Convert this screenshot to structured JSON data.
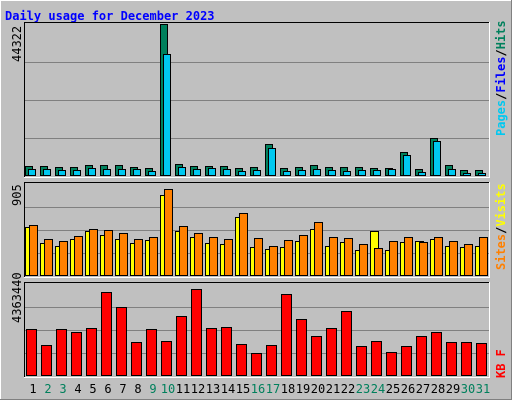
{
  "chart_data": [
    {
      "type": "bar",
      "title": "Daily usage for December 2023",
      "categories": [
        "1",
        "2",
        "3",
        "4",
        "5",
        "6",
        "7",
        "8",
        "9",
        "10",
        "11",
        "12",
        "13",
        "14",
        "15",
        "16",
        "17",
        "18",
        "19",
        "20",
        "21",
        "22",
        "23",
        "24",
        "25",
        "26",
        "27",
        "28",
        "29",
        "30",
        "31"
      ],
      "weekend_days": [
        "2",
        "3",
        "9",
        "10",
        "16",
        "17",
        "23",
        "24",
        "30",
        "31"
      ],
      "ymax_label": "44322",
      "ylim": [
        0,
        44322
      ],
      "legend": [
        "Pages",
        "/",
        "Files",
        "/",
        "Hits"
      ],
      "series": [
        {
          "name": "Hits",
          "color": "#00805c",
          "values": [
            3000,
            2800,
            2700,
            2600,
            3300,
            3100,
            3200,
            2700,
            2200,
            44322,
            3400,
            2800,
            3000,
            2800,
            2400,
            2500,
            9200,
            2300,
            2700,
            3200,
            2700,
            2500,
            2500,
            2200,
            2400,
            7000,
            1900,
            11200,
            3100,
            1700,
            1700
          ]
        },
        {
          "name": "Files",
          "color": "#00c8f0",
          "values": [
            2000,
            1900,
            1800,
            1800,
            2400,
            2000,
            2000,
            1900,
            1600,
            35500,
            2500,
            2000,
            2400,
            2000,
            1600,
            1700,
            8200,
            1600,
            1800,
            2100,
            1800,
            1600,
            1700,
            1700,
            1900,
            6100,
            1200,
            10100,
            2100,
            1000,
            1000
          ]
        },
        {
          "name": "Pages",
          "color": "#00c8f0",
          "values": [
            0,
            0,
            0,
            0,
            0,
            0,
            0,
            0,
            0,
            0,
            0,
            0,
            0,
            0,
            0,
            0,
            0,
            0,
            0,
            0,
            0,
            0,
            0,
            0,
            0,
            0,
            0,
            0,
            0,
            0,
            0
          ]
        }
      ]
    },
    {
      "type": "bar",
      "ymax_label": "905",
      "ylim": [
        0,
        905
      ],
      "legend": [
        "Sites",
        "/",
        "Visits"
      ],
      "series": [
        {
          "name": "Visits",
          "color": "#ffff00",
          "values": [
            480,
            320,
            300,
            360,
            440,
            400,
            360,
            320,
            350,
            800,
            440,
            380,
            320,
            310,
            580,
            290,
            270,
            290,
            340,
            460,
            300,
            330,
            260,
            440,
            260,
            330,
            340,
            360,
            300,
            290,
            300
          ]
        },
        {
          "name": "Sites",
          "color": "#ff8000",
          "values": [
            500,
            360,
            340,
            390,
            460,
            450,
            420,
            360,
            380,
            860,
            490,
            420,
            380,
            360,
            620,
            370,
            300,
            350,
            400,
            530,
            380,
            370,
            310,
            280,
            340,
            380,
            330,
            380,
            340,
            310,
            380
          ]
        }
      ]
    },
    {
      "type": "bar",
      "ymax_label": "4363440",
      "ylim": [
        0,
        4363440
      ],
      "legend": [
        "KB",
        "F"
      ],
      "series": [
        {
          "name": "KB F",
          "color": "#ff0000",
          "values": [
            2250000,
            1470000,
            2250000,
            2080000,
            2270000,
            3980000,
            3280000,
            1620000,
            2230000,
            1640000,
            2830000,
            4140000,
            2280000,
            2330000,
            1520000,
            1080000,
            1460000,
            3900000,
            2680000,
            1920000,
            2280000,
            3080000,
            1440000,
            1640000,
            1130000,
            1410000,
            1880000,
            2070000,
            1620000,
            1620000,
            1560000
          ]
        }
      ]
    }
  ]
}
